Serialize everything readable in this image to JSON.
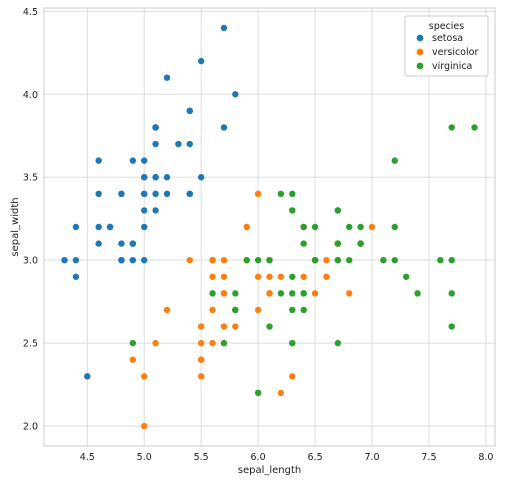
{
  "chart_data": {
    "type": "scatter",
    "xlabel": "sepal_length",
    "ylabel": "sepal_width",
    "xlim": [
      4.12,
      8.08
    ],
    "ylim": [
      1.88,
      4.52
    ],
    "xticks": [
      "4.5",
      "5.0",
      "5.5",
      "6.0",
      "6.5",
      "7.0",
      "7.5",
      "8.0"
    ],
    "yticks": [
      "2.0",
      "2.5",
      "3.0",
      "3.5",
      "4.0",
      "4.5"
    ],
    "grid": true,
    "legend": {
      "title": "species",
      "placement": "top-right"
    },
    "series": [
      {
        "name": "setosa",
        "color": "#1f77b4",
        "points": [
          [
            5.1,
            3.5
          ],
          [
            4.9,
            3.0
          ],
          [
            4.7,
            3.2
          ],
          [
            4.6,
            3.1
          ],
          [
            5.0,
            3.6
          ],
          [
            5.4,
            3.9
          ],
          [
            4.6,
            3.4
          ],
          [
            5.0,
            3.4
          ],
          [
            4.4,
            2.9
          ],
          [
            4.9,
            3.1
          ],
          [
            5.4,
            3.7
          ],
          [
            4.8,
            3.4
          ],
          [
            4.8,
            3.0
          ],
          [
            4.3,
            3.0
          ],
          [
            5.8,
            4.0
          ],
          [
            5.7,
            4.4
          ],
          [
            5.4,
            3.9
          ],
          [
            5.1,
            3.5
          ],
          [
            5.7,
            3.8
          ],
          [
            5.1,
            3.8
          ],
          [
            5.4,
            3.4
          ],
          [
            5.1,
            3.7
          ],
          [
            4.6,
            3.6
          ],
          [
            5.1,
            3.3
          ],
          [
            4.8,
            3.4
          ],
          [
            5.0,
            3.0
          ],
          [
            5.0,
            3.4
          ],
          [
            5.2,
            3.5
          ],
          [
            5.2,
            3.4
          ],
          [
            4.7,
            3.2
          ],
          [
            4.8,
            3.1
          ],
          [
            5.4,
            3.4
          ],
          [
            5.2,
            4.1
          ],
          [
            5.5,
            4.2
          ],
          [
            4.9,
            3.1
          ],
          [
            5.0,
            3.2
          ],
          [
            5.5,
            3.5
          ],
          [
            4.9,
            3.6
          ],
          [
            4.4,
            3.0
          ],
          [
            5.1,
            3.4
          ],
          [
            5.0,
            3.5
          ],
          [
            4.5,
            2.3
          ],
          [
            4.4,
            3.2
          ],
          [
            5.0,
            3.5
          ],
          [
            5.1,
            3.8
          ],
          [
            4.8,
            3.0
          ],
          [
            5.1,
            3.8
          ],
          [
            4.6,
            3.2
          ],
          [
            5.3,
            3.7
          ],
          [
            5.0,
            3.3
          ]
        ]
      },
      {
        "name": "versicolor",
        "color": "#ff7f0e",
        "points": [
          [
            7.0,
            3.2
          ],
          [
            6.4,
            3.2
          ],
          [
            6.9,
            3.1
          ],
          [
            5.5,
            2.3
          ],
          [
            6.5,
            2.8
          ],
          [
            5.7,
            2.8
          ],
          [
            6.3,
            3.3
          ],
          [
            4.9,
            2.4
          ],
          [
            6.6,
            2.9
          ],
          [
            5.2,
            2.7
          ],
          [
            5.0,
            2.0
          ],
          [
            5.9,
            3.0
          ],
          [
            6.0,
            2.2
          ],
          [
            6.1,
            2.9
          ],
          [
            5.6,
            2.9
          ],
          [
            6.7,
            3.1
          ],
          [
            5.6,
            3.0
          ],
          [
            5.8,
            2.7
          ],
          [
            6.2,
            2.2
          ],
          [
            5.6,
            2.5
          ],
          [
            5.9,
            3.2
          ],
          [
            6.1,
            2.8
          ],
          [
            6.3,
            2.5
          ],
          [
            6.1,
            2.8
          ],
          [
            6.4,
            2.9
          ],
          [
            6.6,
            3.0
          ],
          [
            6.8,
            2.8
          ],
          [
            6.7,
            3.0
          ],
          [
            6.0,
            2.9
          ],
          [
            5.7,
            2.6
          ],
          [
            5.5,
            2.4
          ],
          [
            5.5,
            2.4
          ],
          [
            5.8,
            2.7
          ],
          [
            6.0,
            2.7
          ],
          [
            5.4,
            3.0
          ],
          [
            6.0,
            3.4
          ],
          [
            6.7,
            3.1
          ],
          [
            6.3,
            2.3
          ],
          [
            5.6,
            3.0
          ],
          [
            5.5,
            2.5
          ],
          [
            5.5,
            2.6
          ],
          [
            6.1,
            3.0
          ],
          [
            5.8,
            2.6
          ],
          [
            5.0,
            2.3
          ],
          [
            5.6,
            2.7
          ],
          [
            5.7,
            3.0
          ],
          [
            5.7,
            2.9
          ],
          [
            6.2,
            2.9
          ],
          [
            5.1,
            2.5
          ],
          [
            5.7,
            2.8
          ]
        ]
      },
      {
        "name": "virginica",
        "color": "#2ca02c",
        "points": [
          [
            6.3,
            3.3
          ],
          [
            5.8,
            2.7
          ],
          [
            7.1,
            3.0
          ],
          [
            6.3,
            2.9
          ],
          [
            6.5,
            3.0
          ],
          [
            7.6,
            3.0
          ],
          [
            4.9,
            2.5
          ],
          [
            7.3,
            2.9
          ],
          [
            6.7,
            2.5
          ],
          [
            7.2,
            3.6
          ],
          [
            6.5,
            3.2
          ],
          [
            6.4,
            2.7
          ],
          [
            6.8,
            3.0
          ],
          [
            5.7,
            2.5
          ],
          [
            5.8,
            2.8
          ],
          [
            6.4,
            3.2
          ],
          [
            6.5,
            3.0
          ],
          [
            7.7,
            3.8
          ],
          [
            7.7,
            2.6
          ],
          [
            6.0,
            2.2
          ],
          [
            6.9,
            3.2
          ],
          [
            5.6,
            2.8
          ],
          [
            7.7,
            2.8
          ],
          [
            6.3,
            2.7
          ],
          [
            6.7,
            3.3
          ],
          [
            7.2,
            3.2
          ],
          [
            6.2,
            2.8
          ],
          [
            6.1,
            3.0
          ],
          [
            6.4,
            2.8
          ],
          [
            7.2,
            3.0
          ],
          [
            7.4,
            2.8
          ],
          [
            7.9,
            3.8
          ],
          [
            6.4,
            2.8
          ],
          [
            6.3,
            2.8
          ],
          [
            6.1,
            2.6
          ],
          [
            7.7,
            3.0
          ],
          [
            6.3,
            3.4
          ],
          [
            6.4,
            3.1
          ],
          [
            6.0,
            3.0
          ],
          [
            6.9,
            3.1
          ],
          [
            6.7,
            3.1
          ],
          [
            6.9,
            3.1
          ],
          [
            5.8,
            2.7
          ],
          [
            6.8,
            3.2
          ],
          [
            6.7,
            3.3
          ],
          [
            6.7,
            3.0
          ],
          [
            6.3,
            2.5
          ],
          [
            6.5,
            3.0
          ],
          [
            6.2,
            3.4
          ],
          [
            5.9,
            3.0
          ]
        ]
      }
    ]
  }
}
